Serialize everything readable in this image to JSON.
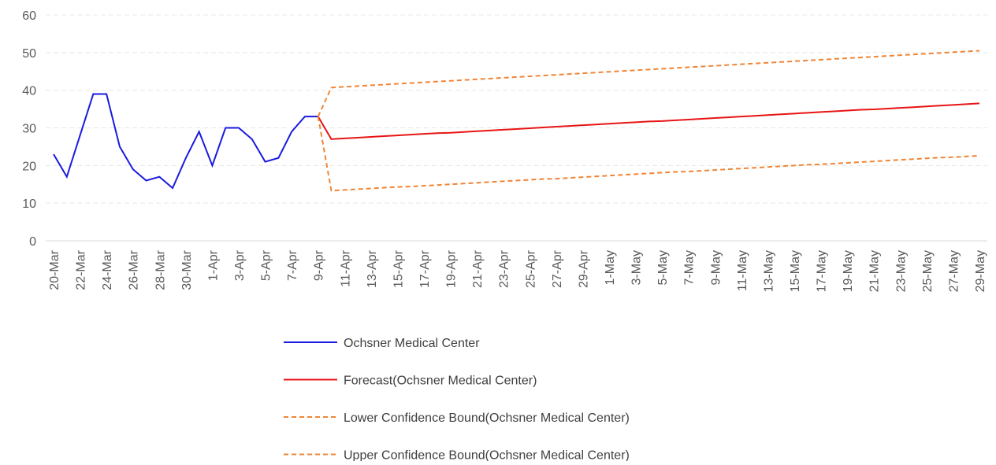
{
  "chart_data": {
    "type": "line",
    "categories": [
      "20-Mar",
      null,
      "22-Mar",
      null,
      "24-Mar",
      null,
      "26-Mar",
      null,
      "28-Mar",
      null,
      "30-Mar",
      null,
      "1-Apr",
      null,
      "3-Apr",
      null,
      "5-Apr",
      null,
      "7-Apr",
      null,
      "9-Apr",
      null,
      "11-Apr",
      null,
      "13-Apr",
      null,
      "15-Apr",
      null,
      "17-Apr",
      null,
      "19-Apr",
      null,
      "21-Apr",
      null,
      "23-Apr",
      null,
      "25-Apr",
      null,
      "27-Apr",
      null,
      "29-Apr",
      null,
      "1-May",
      null,
      "3-May",
      null,
      "5-May",
      null,
      "7-May",
      null,
      "9-May",
      null,
      "11-May",
      null,
      "13-May",
      null,
      "15-May",
      null,
      "17-May",
      null,
      "19-May",
      null,
      "21-May",
      null,
      "23-May",
      null,
      "25-May",
      null,
      "27-May",
      null,
      "29-May"
    ],
    "ylim": [
      0,
      60
    ],
    "yticks": [
      0,
      10,
      20,
      30,
      40,
      50,
      60
    ],
    "grid": true,
    "series": [
      {
        "name": "Ochsner Medical Center",
        "color": "#1a1ae0",
        "dashed": false,
        "values": [
          23,
          17,
          28,
          39,
          39,
          25,
          19,
          16,
          17,
          14,
          22,
          29,
          20,
          30,
          30,
          27,
          21,
          22,
          29,
          33,
          33,
          null,
          null,
          null,
          null,
          null,
          null,
          null,
          null,
          null,
          null,
          null,
          null,
          null,
          null,
          null,
          null,
          null,
          null,
          null,
          null,
          null,
          null,
          null,
          null,
          null,
          null,
          null,
          null,
          null,
          null,
          null,
          null,
          null,
          null,
          null,
          null,
          null,
          null,
          null,
          null,
          null,
          null,
          null,
          null,
          null,
          null,
          null,
          null,
          null,
          null
        ]
      },
      {
        "name": "Forecast(Ochsner Medical Center)",
        "color": "#e81414",
        "dashed": false,
        "values": [
          null,
          null,
          null,
          null,
          null,
          null,
          null,
          null,
          null,
          null,
          null,
          null,
          null,
          null,
          null,
          null,
          null,
          null,
          null,
          null,
          33,
          27.0,
          27.2,
          27.4,
          27.6,
          27.8,
          28.0,
          28.2,
          28.4,
          28.6,
          28.7,
          28.9,
          29.1,
          29.3,
          29.5,
          29.7,
          29.9,
          30.1,
          30.3,
          30.5,
          30.7,
          30.9,
          31.1,
          31.3,
          31.5,
          31.7,
          31.8,
          32.0,
          32.2,
          32.4,
          32.6,
          32.8,
          33.0,
          33.2,
          33.4,
          33.6,
          33.8,
          34.0,
          34.2,
          34.4,
          34.6,
          34.8,
          34.9,
          35.1,
          35.3,
          35.5,
          35.7,
          35.9,
          36.1,
          36.3,
          36.5
        ]
      },
      {
        "name": "Lower Confidence Bound(Ochsner Medical Center)",
        "color": "#f08535",
        "dashed": true,
        "values": [
          null,
          null,
          null,
          null,
          null,
          null,
          null,
          null,
          null,
          null,
          null,
          null,
          null,
          null,
          null,
          null,
          null,
          null,
          null,
          null,
          33,
          13.3,
          13.5,
          13.7,
          13.9,
          14.1,
          14.3,
          14.4,
          14.6,
          14.8,
          15.0,
          15.2,
          15.4,
          15.6,
          15.8,
          16.0,
          16.2,
          16.4,
          16.5,
          16.7,
          16.9,
          17.1,
          17.3,
          17.5,
          17.7,
          17.9,
          18.1,
          18.3,
          18.4,
          18.6,
          18.8,
          19.0,
          19.2,
          19.4,
          19.6,
          19.8,
          20.0,
          20.2,
          20.3,
          20.5,
          20.7,
          20.9,
          21.1,
          21.3,
          21.5,
          21.7,
          21.9,
          22.1,
          22.2,
          22.4,
          22.6
        ]
      },
      {
        "name": "Upper Confidence Bound(Ochsner Medical Center)",
        "color": "#f08535",
        "dashed": true,
        "values": [
          null,
          null,
          null,
          null,
          null,
          null,
          null,
          null,
          null,
          null,
          null,
          null,
          null,
          null,
          null,
          null,
          null,
          null,
          null,
          null,
          33,
          40.7,
          40.9,
          41.1,
          41.3,
          41.5,
          41.7,
          41.9,
          42.1,
          42.3,
          42.5,
          42.7,
          42.9,
          43.1,
          43.3,
          43.5,
          43.7,
          43.9,
          44.1,
          44.3,
          44.5,
          44.7,
          44.9,
          45.1,
          45.3,
          45.5,
          45.7,
          45.9,
          46.1,
          46.3,
          46.5,
          46.7,
          46.9,
          47.1,
          47.3,
          47.5,
          47.7,
          47.9,
          48.1,
          48.3,
          48.5,
          48.7,
          48.9,
          49.1,
          49.3,
          49.5,
          49.7,
          49.9,
          50.1,
          50.3,
          50.5
        ]
      }
    ]
  }
}
